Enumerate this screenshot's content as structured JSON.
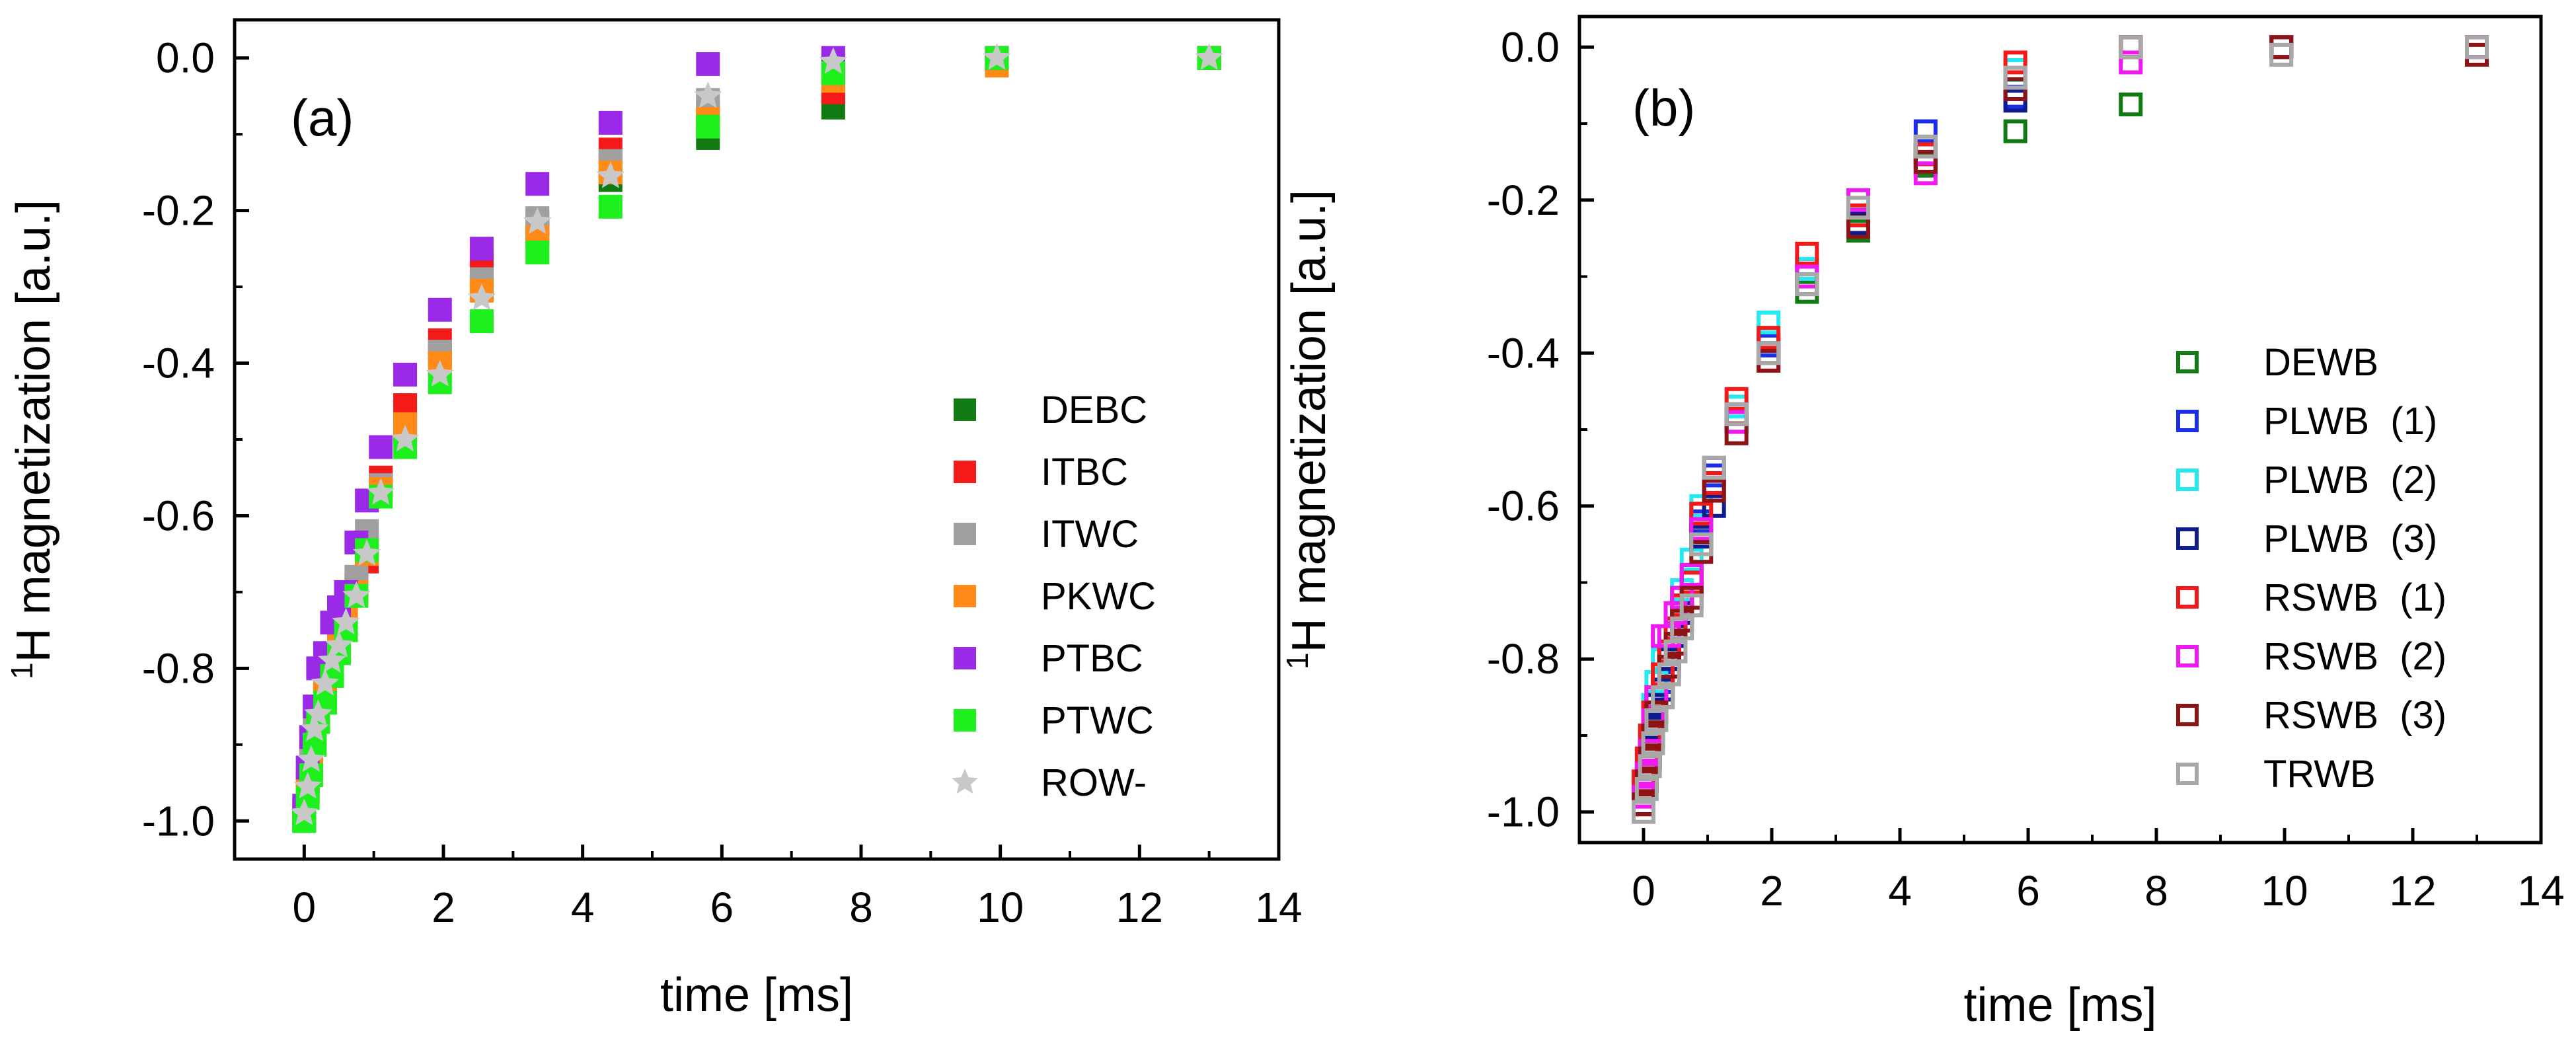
{
  "chart_data": [
    {
      "type": "scatter",
      "panel_label": "(a)",
      "xlabel": "time [ms]",
      "ylabel_sup": "1",
      "ylabel": "H magnetization [a.u.]",
      "xlim": [
        -1,
        14
      ],
      "ylim": [
        -1.05,
        0.05
      ],
      "xticks": [
        0,
        2,
        4,
        6,
        8,
        10,
        12,
        14
      ],
      "yticks": [
        0.0,
        -0.2,
        -0.4,
        -0.6,
        -0.8,
        -1.0
      ],
      "xtick_labels": [
        "0",
        "2",
        "4",
        "6",
        "8",
        "10",
        "12",
        "14"
      ],
      "ytick_labels": [
        "0.0",
        "-0.2",
        "-0.4",
        "-0.6",
        "-0.8",
        "-1.0"
      ],
      "legend_position": "center-right",
      "series": [
        {
          "name": "DEBC",
          "color": "#127a12",
          "marker": "filled-square",
          "x": [
            0.0,
            0.05,
            0.1,
            0.15,
            0.2,
            0.3,
            0.4,
            0.5,
            0.6,
            0.75,
            0.9,
            1.1,
            1.45,
            1.95,
            2.55,
            3.35,
            4.4,
            5.8,
            7.6,
            9.95,
            13.0
          ],
          "y": [
            -1.0,
            -0.96,
            -0.93,
            -0.9,
            -0.87,
            -0.84,
            -0.8,
            -0.77,
            -0.73,
            -0.7,
            -0.64,
            -0.56,
            -0.48,
            -0.39,
            -0.3,
            -0.23,
            -0.16,
            -0.105,
            -0.065,
            -0.005,
            0.0
          ]
        },
        {
          "name": "ITBC",
          "color": "#f41a1a",
          "marker": "filled-square",
          "x": [
            0.0,
            0.05,
            0.1,
            0.15,
            0.2,
            0.3,
            0.4,
            0.5,
            0.6,
            0.75,
            0.9,
            1.1,
            1.45,
            1.95,
            2.55,
            3.35,
            4.4,
            5.8,
            7.6,
            9.95,
            13.0
          ],
          "y": [
            -0.99,
            -0.95,
            -0.92,
            -0.89,
            -0.86,
            -0.83,
            -0.79,
            -0.76,
            -0.72,
            -0.69,
            -0.66,
            -0.55,
            -0.455,
            -0.37,
            -0.27,
            -0.215,
            -0.12,
            -0.07,
            -0.045,
            0.0,
            0.0
          ]
        },
        {
          "name": "ITWC",
          "color": "#a0a0a0",
          "marker": "filled-square",
          "x": [
            0.0,
            0.05,
            0.1,
            0.15,
            0.2,
            0.3,
            0.4,
            0.5,
            0.6,
            0.75,
            0.9,
            1.1,
            1.45,
            1.95,
            2.55,
            3.35,
            4.4,
            5.8,
            7.6,
            9.95,
            13.0
          ],
          "y": [
            -0.985,
            -0.95,
            -0.91,
            -0.88,
            -0.85,
            -0.82,
            -0.78,
            -0.75,
            -0.71,
            -0.68,
            -0.62,
            -0.56,
            -0.49,
            -0.385,
            -0.29,
            -0.21,
            -0.135,
            -0.055,
            -0.01,
            0.0,
            0.0
          ]
        },
        {
          "name": "PKWC",
          "color": "#ff8a17",
          "marker": "filled-square",
          "x": [
            0.0,
            0.05,
            0.1,
            0.15,
            0.2,
            0.3,
            0.4,
            0.5,
            0.6,
            0.75,
            0.9,
            1.1,
            1.45,
            1.95,
            2.55,
            3.35,
            4.4,
            5.8,
            7.6,
            9.95,
            13.0
          ],
          "y": [
            -0.995,
            -0.96,
            -0.93,
            -0.89,
            -0.86,
            -0.83,
            -0.8,
            -0.77,
            -0.73,
            -0.7,
            -0.65,
            -0.565,
            -0.48,
            -0.4,
            -0.305,
            -0.235,
            -0.15,
            -0.08,
            -0.03,
            -0.01,
            0.0
          ]
        },
        {
          "name": "PTBC",
          "color": "#9a2ae8",
          "marker": "filled-square",
          "x": [
            0.0,
            0.05,
            0.1,
            0.15,
            0.2,
            0.3,
            0.4,
            0.5,
            0.6,
            0.75,
            0.9,
            1.1,
            1.45,
            1.95,
            2.55,
            3.35,
            4.4,
            5.8,
            7.6,
            9.95,
            13.0
          ],
          "y": [
            -0.98,
            -0.93,
            -0.89,
            -0.85,
            -0.8,
            -0.78,
            -0.74,
            -0.72,
            -0.7,
            -0.635,
            -0.58,
            -0.51,
            -0.415,
            -0.33,
            -0.25,
            -0.165,
            -0.085,
            -0.008,
            0.0,
            0.0,
            0.0
          ]
        },
        {
          "name": "PTWC",
          "color": "#1ef01e",
          "marker": "filled-square",
          "x": [
            0.0,
            0.05,
            0.1,
            0.15,
            0.2,
            0.3,
            0.4,
            0.5,
            0.6,
            0.75,
            0.9,
            1.1,
            1.45,
            1.95,
            2.55,
            3.35,
            4.4,
            5.8,
            7.6,
            9.95,
            13.0
          ],
          "y": [
            -1.0,
            -0.97,
            -0.94,
            -0.9,
            -0.87,
            -0.845,
            -0.81,
            -0.78,
            -0.75,
            -0.705,
            -0.645,
            -0.575,
            -0.51,
            -0.425,
            -0.345,
            -0.255,
            -0.195,
            -0.09,
            -0.02,
            0.0,
            0.0
          ]
        },
        {
          "name": "ROW-",
          "color": "#c8c8c8",
          "marker": "star",
          "x": [
            0.0,
            0.05,
            0.1,
            0.15,
            0.2,
            0.3,
            0.4,
            0.5,
            0.6,
            0.75,
            0.9,
            1.1,
            1.45,
            1.95,
            2.55,
            3.35,
            4.4,
            5.8,
            7.6,
            9.95,
            13.0
          ],
          "y": [
            -0.99,
            -0.955,
            -0.92,
            -0.88,
            -0.86,
            -0.82,
            -0.79,
            -0.77,
            -0.74,
            -0.705,
            -0.65,
            -0.57,
            -0.5,
            -0.415,
            -0.315,
            -0.215,
            -0.155,
            -0.05,
            -0.005,
            0.0,
            0.0
          ]
        }
      ]
    },
    {
      "type": "scatter",
      "panel_label": "(b)",
      "xlabel": "time [ms]",
      "ylabel_sup": "1",
      "ylabel": "H magnetization [a.u.]",
      "xlim": [
        -1,
        14
      ],
      "ylim": [
        -1.04,
        0.04
      ],
      "xticks": [
        0,
        2,
        4,
        6,
        8,
        10,
        12,
        14
      ],
      "yticks": [
        0.0,
        -0.2,
        -0.4,
        -0.6,
        -0.8,
        -1.0
      ],
      "xtick_labels": [
        "0",
        "2",
        "4",
        "6",
        "8",
        "10",
        "12",
        "14"
      ],
      "ytick_labels": [
        "0.0",
        "-0.2",
        "-0.4",
        "-0.6",
        "-0.8",
        "-1.0"
      ],
      "legend_position": "center-right",
      "series": [
        {
          "name": "DEWB",
          "color": "#127a12",
          "marker": "open-square",
          "x": [
            0.0,
            0.05,
            0.1,
            0.15,
            0.2,
            0.3,
            0.4,
            0.5,
            0.6,
            0.75,
            0.9,
            1.1,
            1.45,
            1.95,
            2.55,
            3.35,
            4.4,
            5.8,
            7.6,
            9.95,
            13.0
          ],
          "y": [
            -0.99,
            -0.96,
            -0.93,
            -0.9,
            -0.87,
            -0.84,
            -0.8,
            -0.77,
            -0.73,
            -0.7,
            -0.63,
            -0.57,
            -0.48,
            -0.39,
            -0.32,
            -0.24,
            -0.155,
            -0.11,
            -0.075,
            0.0,
            0.0
          ]
        },
        {
          "name": "PLWB  (1)",
          "color": "#1a2ee8",
          "marker": "open-square",
          "x": [
            0.0,
            0.05,
            0.1,
            0.15,
            0.2,
            0.3,
            0.4,
            0.5,
            0.6,
            0.75,
            0.9,
            1.1,
            1.45,
            1.95,
            2.55,
            3.35,
            4.4,
            5.8,
            7.6,
            9.95,
            13.0
          ],
          "y": [
            -0.98,
            -0.95,
            -0.91,
            -0.88,
            -0.86,
            -0.83,
            -0.8,
            -0.76,
            -0.72,
            -0.69,
            -0.62,
            -0.56,
            -0.48,
            -0.39,
            -0.29,
            -0.22,
            -0.11,
            -0.065,
            0.0,
            0.0,
            0.0
          ]
        },
        {
          "name": "PLWB  (2)",
          "color": "#26e8f0",
          "marker": "open-square",
          "x": [
            0.0,
            0.05,
            0.1,
            0.15,
            0.2,
            0.3,
            0.4,
            0.5,
            0.6,
            0.75,
            0.9,
            1.1,
            1.45,
            1.95,
            2.55,
            3.35,
            4.4,
            5.8,
            7.6,
            9.95,
            13.0
          ],
          "y": [
            -0.97,
            -0.93,
            -0.9,
            -0.86,
            -0.83,
            -0.8,
            -0.77,
            -0.74,
            -0.71,
            -0.67,
            -0.6,
            -0.55,
            -0.47,
            -0.36,
            -0.29,
            -0.2,
            -0.14,
            -0.03,
            0.0,
            0.0,
            0.0
          ]
        },
        {
          "name": "PLWB  (3)",
          "color": "#0f1c8c",
          "marker": "open-square",
          "x": [
            0.0,
            0.05,
            0.1,
            0.15,
            0.2,
            0.3,
            0.4,
            0.5,
            0.6,
            0.75,
            0.9,
            1.1,
            1.45,
            1.95,
            2.55,
            3.35,
            4.4,
            5.8,
            7.6,
            9.95,
            13.0
          ],
          "y": [
            -0.99,
            -0.96,
            -0.92,
            -0.89,
            -0.86,
            -0.84,
            -0.8,
            -0.77,
            -0.74,
            -0.7,
            -0.64,
            -0.6,
            -0.49,
            -0.4,
            -0.3,
            -0.23,
            -0.14,
            -0.07,
            0.0,
            0.0,
            0.0
          ]
        },
        {
          "name": "RSWB  (1)",
          "color": "#f01a1a",
          "marker": "open-square",
          "x": [
            0.0,
            0.05,
            0.1,
            0.15,
            0.2,
            0.3,
            0.4,
            0.5,
            0.6,
            0.75,
            0.9,
            1.1,
            1.45,
            1.95,
            2.55,
            3.35,
            4.4,
            5.8,
            7.6,
            9.95,
            13.0
          ],
          "y": [
            -0.96,
            -0.93,
            -0.9,
            -0.87,
            -0.85,
            -0.82,
            -0.79,
            -0.76,
            -0.73,
            -0.7,
            -0.61,
            -0.57,
            -0.46,
            -0.38,
            -0.27,
            -0.22,
            -0.14,
            -0.02,
            0.0,
            0.0,
            0.0
          ]
        },
        {
          "name": "RSWB  (2)",
          "color": "#f01af0",
          "marker": "open-square",
          "x": [
            0.0,
            0.05,
            0.1,
            0.15,
            0.2,
            0.3,
            0.4,
            0.5,
            0.6,
            0.75,
            0.9,
            1.1,
            1.45,
            1.95,
            2.55,
            3.35,
            4.4,
            5.8,
            7.6,
            9.95,
            13.0
          ],
          "y": [
            -0.98,
            -0.95,
            -0.92,
            -0.88,
            -0.85,
            -0.77,
            -0.77,
            -0.74,
            -0.72,
            -0.69,
            -0.63,
            -0.55,
            -0.49,
            -0.41,
            -0.3,
            -0.2,
            -0.165,
            -0.04,
            -0.02,
            0.0,
            0.0
          ]
        },
        {
          "name": "RSWB  (3)",
          "color": "#8c1414",
          "marker": "open-square",
          "x": [
            0.0,
            0.05,
            0.1,
            0.15,
            0.2,
            0.3,
            0.4,
            0.5,
            0.6,
            0.75,
            0.9,
            1.1,
            1.45,
            1.95,
            2.55,
            3.35,
            4.4,
            5.8,
            7.6,
            9.95,
            13.0
          ],
          "y": [
            -0.99,
            -0.96,
            -0.93,
            -0.9,
            -0.87,
            -0.85,
            -0.81,
            -0.78,
            -0.75,
            -0.72,
            -0.66,
            -0.58,
            -0.505,
            -0.41,
            -0.31,
            -0.235,
            -0.15,
            -0.055,
            0.0,
            0.0,
            -0.01
          ]
        },
        {
          "name": "TRWB",
          "color": "#a8a8a8",
          "marker": "open-square",
          "x": [
            0.0,
            0.05,
            0.1,
            0.15,
            0.2,
            0.3,
            0.4,
            0.5,
            0.6,
            0.75,
            0.9,
            1.1,
            1.45,
            1.95,
            2.55,
            3.35,
            4.4,
            5.8,
            7.6,
            9.95,
            13.0
          ],
          "y": [
            -1.0,
            -0.97,
            -0.94,
            -0.91,
            -0.88,
            -0.85,
            -0.82,
            -0.79,
            -0.76,
            -0.73,
            -0.65,
            -0.55,
            -0.48,
            -0.4,
            -0.31,
            -0.21,
            -0.13,
            -0.04,
            0.0,
            -0.01,
            0.0
          ]
        }
      ]
    }
  ]
}
